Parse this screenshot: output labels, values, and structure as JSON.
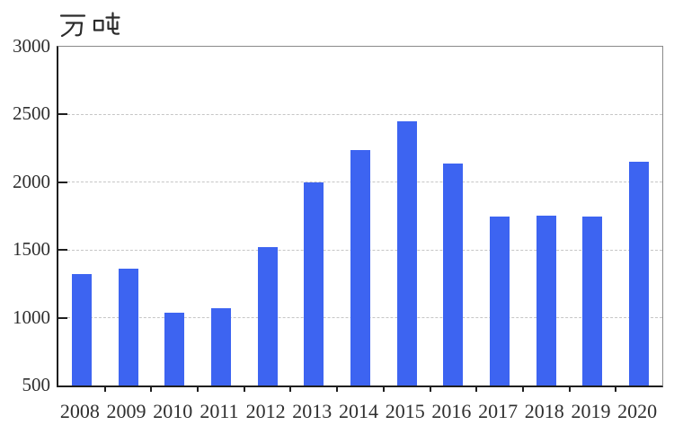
{
  "page": {
    "background": "#ffffff"
  },
  "chart_data": {
    "type": "bar",
    "title": "",
    "unit_label": "万吨",
    "categories": [
      "2008",
      "2009",
      "2010",
      "2011",
      "2012",
      "2013",
      "2014",
      "2015",
      "2016",
      "2017",
      "2018",
      "2019",
      "2020"
    ],
    "values": [
      1325,
      1360,
      1035,
      1070,
      1520,
      2000,
      2240,
      2450,
      2140,
      1745,
      1755,
      1745,
      2150
    ],
    "ylim": [
      500,
      3000
    ],
    "yticks": [
      3000,
      2500,
      2000,
      1500,
      1000,
      500
    ],
    "gridlines": [
      2500,
      2000,
      1500,
      1000
    ],
    "grid": "horizontal-dashed",
    "legend_position": "none",
    "colors": {
      "bar": "#3d64f1",
      "axis": "#1f1f1f",
      "frame": "#8a8a8a",
      "grid": "#c6c6c6",
      "label": "#2e2e2e"
    }
  }
}
